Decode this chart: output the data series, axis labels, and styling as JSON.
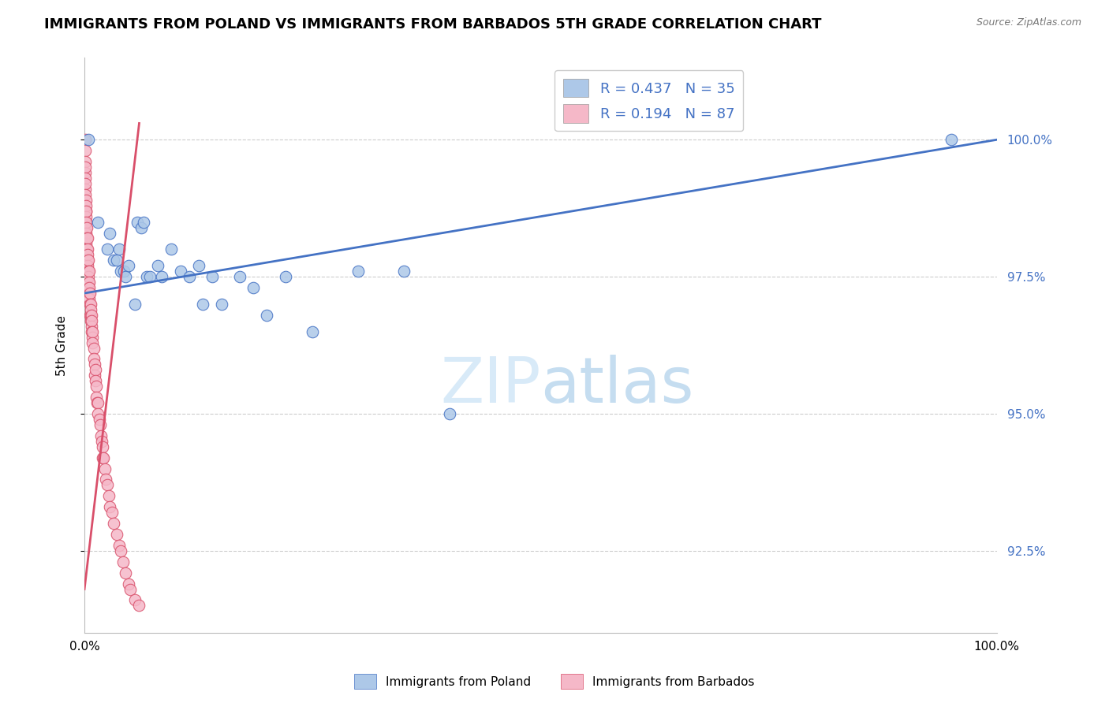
{
  "title": "IMMIGRANTS FROM POLAND VS IMMIGRANTS FROM BARBADOS 5TH GRADE CORRELATION CHART",
  "source": "Source: ZipAtlas.com",
  "ylabel": "5th Grade",
  "y_tick_values": [
    92.5,
    95.0,
    97.5,
    100.0
  ],
  "y_tick_labels": [
    "92.5%",
    "95.0%",
    "97.5%",
    "100.0%"
  ],
  "xlim": [
    0.0,
    100.0
  ],
  "ylim": [
    91.0,
    101.5
  ],
  "legend_entries": [
    {
      "label": "R = 0.437   N = 35",
      "color": "#adc8e8"
    },
    {
      "label": "R = 0.194   N = 87",
      "color": "#f5b8c8"
    }
  ],
  "bottom_legend": [
    {
      "label": "Immigrants from Poland",
      "color": "#adc8e8"
    },
    {
      "label": "Immigrants from Barbados",
      "color": "#f5b8c8"
    }
  ],
  "poland_x": [
    0.4,
    1.5,
    2.5,
    2.8,
    3.2,
    3.5,
    3.8,
    4.0,
    4.3,
    4.5,
    4.8,
    5.5,
    5.8,
    6.2,
    6.5,
    6.8,
    7.2,
    8.0,
    8.5,
    9.5,
    10.5,
    11.5,
    12.5,
    13.0,
    14.0,
    15.0,
    17.0,
    18.5,
    20.0,
    22.0,
    25.0,
    30.0,
    35.0,
    40.0,
    95.0
  ],
  "poland_y": [
    100.0,
    98.5,
    98.0,
    98.3,
    97.8,
    97.8,
    98.0,
    97.6,
    97.6,
    97.5,
    97.7,
    97.0,
    98.5,
    98.4,
    98.5,
    97.5,
    97.5,
    97.7,
    97.5,
    98.0,
    97.6,
    97.5,
    97.7,
    97.0,
    97.5,
    97.0,
    97.5,
    97.3,
    96.8,
    97.5,
    96.5,
    97.6,
    97.6,
    95.0,
    100.0
  ],
  "barbados_x": [
    0.05,
    0.05,
    0.08,
    0.08,
    0.1,
    0.1,
    0.1,
    0.12,
    0.12,
    0.15,
    0.15,
    0.15,
    0.18,
    0.18,
    0.18,
    0.2,
    0.2,
    0.2,
    0.2,
    0.2,
    0.25,
    0.25,
    0.25,
    0.3,
    0.3,
    0.3,
    0.3,
    0.35,
    0.35,
    0.4,
    0.4,
    0.4,
    0.45,
    0.45,
    0.5,
    0.5,
    0.5,
    0.55,
    0.55,
    0.6,
    0.6,
    0.6,
    0.65,
    0.65,
    0.7,
    0.7,
    0.75,
    0.75,
    0.8,
    0.8,
    0.85,
    0.9,
    0.9,
    1.0,
    1.0,
    1.1,
    1.1,
    1.2,
    1.2,
    1.3,
    1.3,
    1.4,
    1.5,
    1.5,
    1.6,
    1.7,
    1.8,
    1.9,
    2.0,
    2.0,
    2.1,
    2.2,
    2.3,
    2.5,
    2.7,
    2.8,
    3.0,
    3.2,
    3.5,
    3.8,
    4.0,
    4.2,
    4.5,
    4.8,
    5.0,
    5.5,
    6.0
  ],
  "barbados_y": [
    100.0,
    99.8,
    99.6,
    99.4,
    99.5,
    99.3,
    99.1,
    99.2,
    99.0,
    98.9,
    98.7,
    98.5,
    98.8,
    98.6,
    98.4,
    98.7,
    98.5,
    98.3,
    98.1,
    97.9,
    98.4,
    98.2,
    98.0,
    98.2,
    98.0,
    97.8,
    97.6,
    97.9,
    97.7,
    97.8,
    97.6,
    97.4,
    97.5,
    97.3,
    97.6,
    97.4,
    97.2,
    97.3,
    97.1,
    97.2,
    97.0,
    96.8,
    97.0,
    96.8,
    96.9,
    96.7,
    96.8,
    96.6,
    96.7,
    96.5,
    96.4,
    96.5,
    96.3,
    96.2,
    96.0,
    95.9,
    95.7,
    95.8,
    95.6,
    95.5,
    95.3,
    95.2,
    95.2,
    95.0,
    94.9,
    94.8,
    94.6,
    94.5,
    94.4,
    94.2,
    94.2,
    94.0,
    93.8,
    93.7,
    93.5,
    93.3,
    93.2,
    93.0,
    92.8,
    92.6,
    92.5,
    92.3,
    92.1,
    91.9,
    91.8,
    91.6,
    91.5
  ],
  "poland_color": "#adc8e8",
  "barbados_color": "#f5b8c8",
  "poland_line_color": "#4472c4",
  "barbados_line_color": "#d94f6a",
  "grid_color": "#cccccc",
  "background_color": "#ffffff",
  "title_fontsize": 13,
  "axis_label_fontsize": 11,
  "tick_fontsize": 11,
  "watermark_zip": "ZIP",
  "watermark_atlas": "atlas",
  "watermark_color_zip": "#ddeef8",
  "watermark_color_atlas": "#c8dff0"
}
